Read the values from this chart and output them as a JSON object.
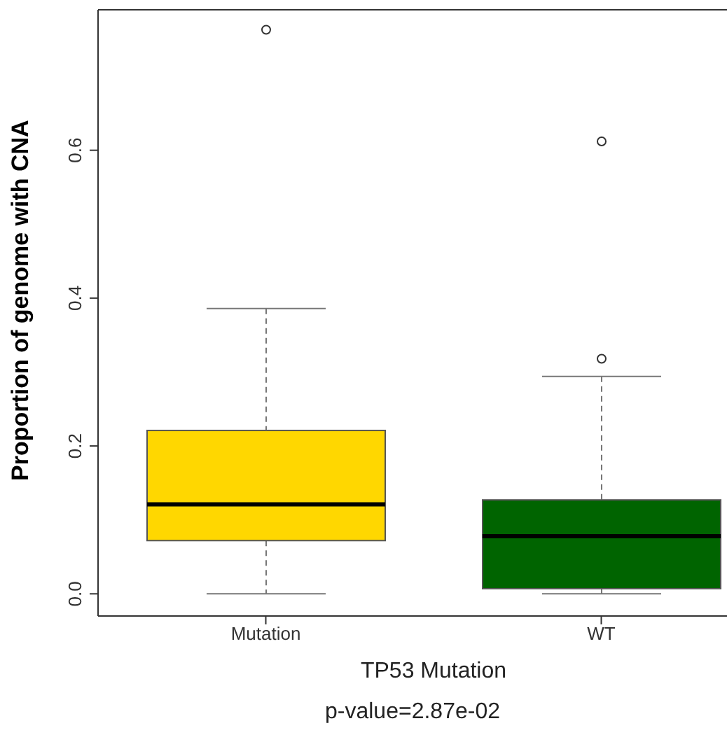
{
  "chart_data": {
    "type": "box",
    "xlabel": "TP53 Mutation",
    "ylabel": "Proportion of genome with CNA",
    "annotations": [
      "p-value=2.87e-02"
    ],
    "categories": [
      "Mutation",
      "WT"
    ],
    "colors": [
      "#ffd700",
      "#006400"
    ],
    "boxes": [
      {
        "low": 0,
        "q1": 0.072,
        "median": 0.121,
        "q3": 0.221,
        "high": 0.386,
        "outliers": [
          0.763
        ]
      },
      {
        "low": 0,
        "q1": 0.007,
        "median": 0.078,
        "q3": 0.127,
        "high": 0.294,
        "outliers": [
          0.612,
          0.318
        ]
      }
    ],
    "ylim": [
      -0.03,
      0.79
    ],
    "yticks": [
      {
        "value": 0,
        "label": "0.0"
      },
      0.2,
      0.4,
      0.6
    ],
    "grid": false,
    "legend": false
  }
}
